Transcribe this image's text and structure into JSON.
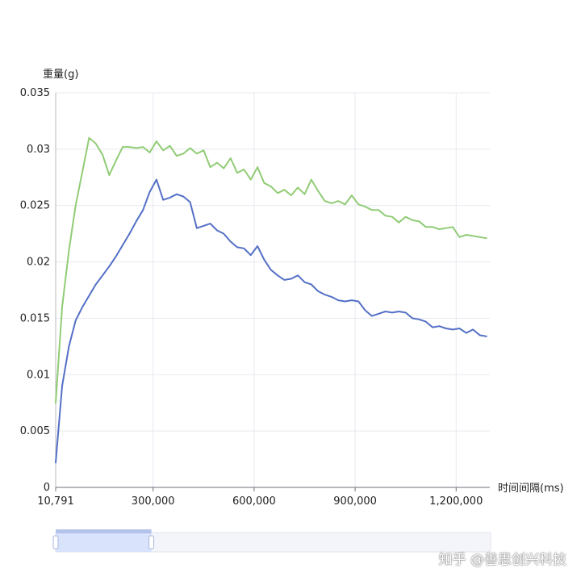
{
  "chart_data": {
    "type": "line",
    "ylabel": "重量(g)",
    "xlabel": "时间间隔(ms)",
    "ylim": [
      0,
      0.035
    ],
    "y_ticks": [
      "0",
      "0.005",
      "0.01",
      "0.015",
      "0.02",
      "0.025",
      "0.03",
      "0.035"
    ],
    "y_tick_values": [
      0,
      0.005,
      0.01,
      0.015,
      0.02,
      0.025,
      0.03,
      0.035
    ],
    "x_ticks": [
      "10,791",
      "300,000",
      "600,000",
      "900,000",
      "1,200,000"
    ],
    "x_tick_values": [
      10791,
      300000,
      600000,
      900000,
      1200000
    ],
    "xlim": [
      10791,
      1300000
    ],
    "grid": true,
    "series": [
      {
        "color": "#91cc75",
        "x": [
          10791,
          30000,
          50000,
          70000,
          90000,
          110000,
          130000,
          150000,
          170000,
          190000,
          210000,
          230000,
          250000,
          270000,
          290000,
          310000,
          330000,
          350000,
          370000,
          390000,
          410000,
          430000,
          450000,
          470000,
          490000,
          510000,
          530000,
          550000,
          570000,
          590000,
          610000,
          630000,
          650000,
          670000,
          690000,
          710000,
          730000,
          750000,
          770000,
          790000,
          810000,
          830000,
          850000,
          870000,
          890000,
          910000,
          930000,
          950000,
          970000,
          990000,
          1010000,
          1030000,
          1050000,
          1070000,
          1090000,
          1110000,
          1130000,
          1150000,
          1170000,
          1190000,
          1210000,
          1230000,
          1250000,
          1270000,
          1290000
        ],
        "values": [
          0.0075,
          0.016,
          0.021,
          0.025,
          0.028,
          0.031,
          0.0305,
          0.0295,
          0.0277,
          0.029,
          0.0302,
          0.0302,
          0.0301,
          0.0302,
          0.0297,
          0.0307,
          0.0299,
          0.0303,
          0.0294,
          0.0296,
          0.0301,
          0.0296,
          0.0299,
          0.0284,
          0.0288,
          0.0283,
          0.0292,
          0.0279,
          0.0282,
          0.0273,
          0.0284,
          0.027,
          0.0267,
          0.0261,
          0.0264,
          0.0259,
          0.0266,
          0.026,
          0.0273,
          0.0263,
          0.0254,
          0.0252,
          0.0254,
          0.0251,
          0.0259,
          0.0251,
          0.0249,
          0.0246,
          0.0246,
          0.0241,
          0.024,
          0.0235,
          0.024,
          0.0237,
          0.0236,
          0.0231,
          0.0231,
          0.0229,
          0.023,
          0.0231,
          0.0222,
          0.0224,
          0.0223,
          0.0222,
          0.0221
        ]
      },
      {
        "color": "#5470c6",
        "x": [
          10791,
          30000,
          50000,
          70000,
          90000,
          110000,
          130000,
          150000,
          170000,
          190000,
          210000,
          230000,
          250000,
          270000,
          290000,
          310000,
          330000,
          350000,
          370000,
          390000,
          410000,
          430000,
          450000,
          470000,
          490000,
          510000,
          530000,
          550000,
          570000,
          590000,
          610000,
          630000,
          650000,
          670000,
          690000,
          710000,
          730000,
          750000,
          770000,
          790000,
          810000,
          830000,
          850000,
          870000,
          890000,
          910000,
          930000,
          950000,
          970000,
          990000,
          1010000,
          1030000,
          1050000,
          1070000,
          1090000,
          1110000,
          1130000,
          1150000,
          1170000,
          1190000,
          1210000,
          1230000,
          1250000,
          1270000,
          1290000
        ],
        "values": [
          0.0022,
          0.009,
          0.0125,
          0.0148,
          0.016,
          0.017,
          0.018,
          0.0188,
          0.0196,
          0.0205,
          0.0215,
          0.0225,
          0.0236,
          0.0246,
          0.0262,
          0.0273,
          0.0255,
          0.0257,
          0.026,
          0.0258,
          0.0253,
          0.023,
          0.0232,
          0.0234,
          0.0228,
          0.0225,
          0.0218,
          0.0213,
          0.0212,
          0.0206,
          0.0214,
          0.0202,
          0.0193,
          0.0188,
          0.0184,
          0.0185,
          0.0188,
          0.0182,
          0.018,
          0.0174,
          0.0171,
          0.0169,
          0.0166,
          0.0165,
          0.0166,
          0.0165,
          0.0157,
          0.0152,
          0.0154,
          0.0156,
          0.0155,
          0.0156,
          0.0155,
          0.015,
          0.0149,
          0.0147,
          0.0142,
          0.0143,
          0.0141,
          0.014,
          0.0141,
          0.0137,
          0.014,
          0.0135,
          0.0134
        ]
      }
    ]
  },
  "data_zoom": {
    "start_fraction": 0,
    "end_fraction": 0.22
  },
  "watermark": "知乎 @善思创兴科技"
}
